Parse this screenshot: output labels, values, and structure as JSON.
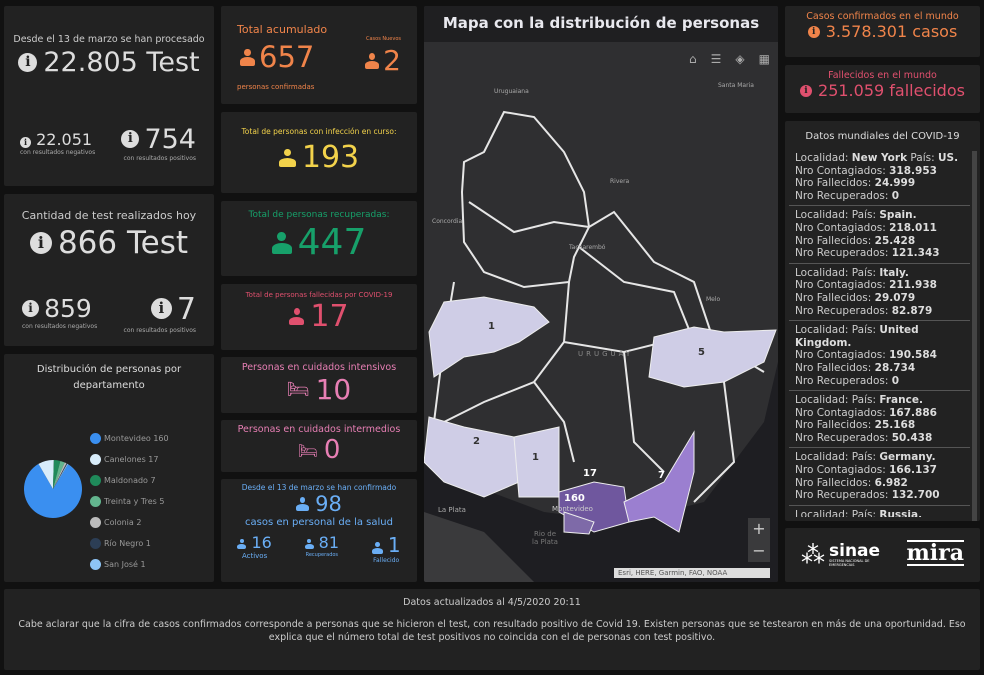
{
  "tests_total": {
    "title": "Desde el 13 de marzo se han procesado",
    "value": "22.805 Test",
    "neg": "22.051",
    "neg_label": "con resultados negativos",
    "pos": "754",
    "pos_label": "con resultados positivos"
  },
  "tests_today": {
    "title": "Cantidad de test realizados hoy",
    "value": "866 Test",
    "neg": "859",
    "neg_label": "con resultados negativos",
    "pos": "7",
    "pos_label": "con resultados positivos"
  },
  "distribution": {
    "title": "Distribución de personas por departamento",
    "chart_data": {
      "type": "pie",
      "title": "Distribución de personas por departamento",
      "categories": [
        "Montevideo",
        "Canelones",
        "Maldonado",
        "Treinta y Tres",
        "Colonia",
        "Río Negro",
        "San José"
      ],
      "values": [
        160,
        17,
        7,
        5,
        2,
        1,
        1
      ],
      "colors": [
        "#3a8ff0",
        "#d8ecfa",
        "#1f8a5a",
        "#63b58e",
        "#bbbbbb",
        "#2c3e55",
        "#8ec4f5"
      ]
    },
    "legend": [
      "Montevideo  160",
      "Canelones  17",
      "Maldonado  7",
      "Treinta y Tres  5",
      "Colonia  2",
      "Río Negro  1",
      "San José  1"
    ]
  },
  "accum": {
    "title": "Total acumulado",
    "value": "657",
    "label": "personas confirmadas",
    "new_label": "Casos Nuevos",
    "new_value": "2",
    "color": "#f0844a"
  },
  "active": {
    "title": "Total de personas con infección en curso:",
    "value": "193",
    "color": "#f2d24b"
  },
  "recovered": {
    "title": "Total de personas recuperadas:",
    "value": "447",
    "color": "#17a06a"
  },
  "deaths": {
    "title": "Total de personas fallecidas por COVID-19",
    "value": "17",
    "color": "#e0506e"
  },
  "icu": {
    "title": "Personas en cuidados intensivos",
    "value": "10",
    "color": "#e77fb4"
  },
  "intermediate": {
    "title": "Personas en cuidados intermedios",
    "value": "0",
    "color": "#e77fb4"
  },
  "health": {
    "title": "Desde el 13 de marzo se han confirmado",
    "value": "98",
    "subtitle": "casos en personal de la salud",
    "color": "#6aaef5",
    "stats": [
      {
        "value": "16",
        "label": "Activos"
      },
      {
        "value": "81",
        "label": "Recuperados"
      },
      {
        "value": "1",
        "label": "Fallecido"
      }
    ]
  },
  "map": {
    "title": "Mapa con la distribución de personas",
    "attribution": "Esri, HERE, Garmin, FAO, NOAA",
    "country": "URUGUAY",
    "places": [
      "Uruguaiana",
      "Santa Maria",
      "Rivera",
      "Concordia",
      "Tacuarembó",
      "Melo",
      "Montevideo",
      "La Plata",
      "Rio de la Plata"
    ],
    "regions": [
      "1",
      "5",
      "2",
      "1",
      "17",
      "7",
      "160"
    ],
    "zoom_in": "+",
    "zoom_out": "−"
  },
  "world_cases": {
    "title": "Casos confirmados en el mundo",
    "value": "3.578.301 casos",
    "color": "#f0844a"
  },
  "world_deaths": {
    "title": "Fallecidos en el mundo",
    "value": "251.059 fallecidos",
    "color": "#e0506e"
  },
  "world": {
    "title": "Datos mundiales del COVID-19",
    "items": [
      {
        "loc": "New York",
        "country": "US.",
        "cont": "318.953",
        "dead": "24.999",
        "rec": "0"
      },
      {
        "loc": "",
        "country": "Spain.",
        "cont": "218.011",
        "dead": "25.428",
        "rec": "121.343"
      },
      {
        "loc": "",
        "country": "Italy.",
        "cont": "211.938",
        "dead": "29.079",
        "rec": "82.879"
      },
      {
        "loc": "",
        "country": "United Kingdom.",
        "cont": "190.584",
        "dead": "28.734",
        "rec": "0"
      },
      {
        "loc": "",
        "country": "France.",
        "cont": "167.886",
        "dead": "25.168",
        "rec": "50.438"
      },
      {
        "loc": "",
        "country": "Germany.",
        "cont": "166.137",
        "dead": "6.982",
        "rec": "132.700"
      },
      {
        "loc": "",
        "country": "Russia.",
        "cont": "",
        "dead": "",
        "rec": ""
      }
    ],
    "l_loc": "Localidad:",
    "l_country": "País:",
    "l_cont": "Nro Contagiados:",
    "l_dead": "Nro Fallecidos:",
    "l_rec": "Nro Recuperados:"
  },
  "logos": {
    "sinae": "sinae",
    "sinae_sub": "SISTEMA NACIONAL DE EMERGENCIAS",
    "mira": "mira"
  },
  "footer": {
    "updated": "Datos actualizados al 4/5/2020 20:11",
    "note": "Cabe aclarar que la cifra de casos confirmados corresponde a personas que se hicieron el test, con resultado positivo de Covid 19. Existen personas que se testearon en más de una oportunidad. Eso explica que el número total de test positivos no coincida con el de personas con test positivo."
  }
}
